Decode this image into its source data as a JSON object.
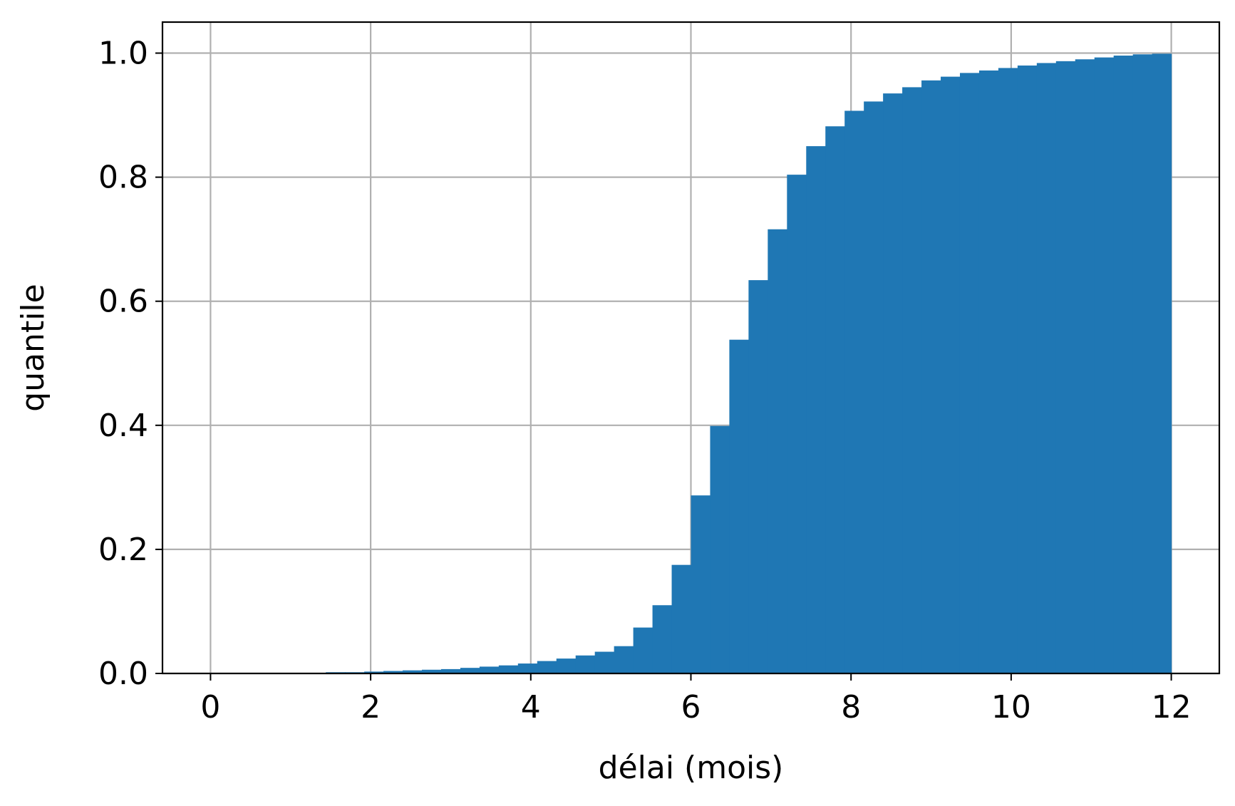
{
  "chart_data": {
    "type": "bar",
    "title": "",
    "xlabel": "délai (mois)",
    "ylabel": "quantile",
    "xlim": [
      -0.6,
      12.6
    ],
    "ylim": [
      0.0,
      1.05
    ],
    "xticks": [
      0,
      2,
      4,
      6,
      8,
      10,
      12
    ],
    "xtick_labels": [
      "0",
      "2",
      "4",
      "6",
      "8",
      "10",
      "12"
    ],
    "yticks": [
      0.0,
      0.2,
      0.4,
      0.6,
      0.8,
      1.0
    ],
    "ytick_labels": [
      "0.0",
      "0.2",
      "0.4",
      "0.6",
      "0.8",
      "1.0"
    ],
    "grid": true,
    "bar_color": "#1f77b4",
    "bin_edges": [
      0.0,
      0.24,
      0.48,
      0.72,
      0.96,
      1.2,
      1.44,
      1.68,
      1.92,
      2.16,
      2.4,
      2.64,
      2.88,
      3.12,
      3.36,
      3.6,
      3.84,
      4.08,
      4.32,
      4.56,
      4.8,
      5.04,
      5.28,
      5.52,
      5.76,
      6.0,
      6.24,
      6.48,
      6.72,
      6.96,
      7.2,
      7.44,
      7.68,
      7.92,
      8.16,
      8.4,
      8.64,
      8.88,
      9.12,
      9.36,
      9.6,
      9.84,
      10.08,
      10.32,
      10.56,
      10.8,
      11.04,
      11.28,
      11.52,
      11.76,
      12.0
    ],
    "values": [
      0.0,
      0.0,
      0.0,
      0.0,
      0.0,
      0.001,
      0.002,
      0.002,
      0.003,
      0.004,
      0.005,
      0.006,
      0.007,
      0.009,
      0.011,
      0.013,
      0.016,
      0.02,
      0.024,
      0.029,
      0.035,
      0.044,
      0.074,
      0.11,
      0.175,
      0.287,
      0.399,
      0.538,
      0.634,
      0.716,
      0.804,
      0.85,
      0.882,
      0.907,
      0.922,
      0.935,
      0.945,
      0.956,
      0.962,
      0.968,
      0.972,
      0.976,
      0.98,
      0.984,
      0.987,
      0.99,
      0.993,
      0.996,
      0.998,
      0.999
    ]
  }
}
